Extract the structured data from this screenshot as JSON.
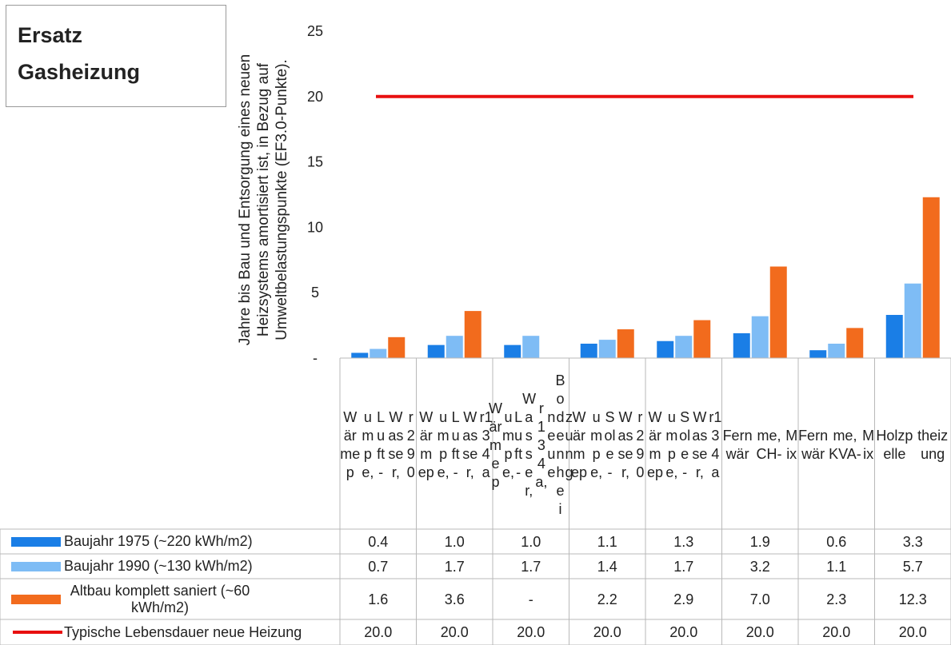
{
  "title": {
    "line1": "Ersatz",
    "line2": "Gasheizung"
  },
  "chart_data": {
    "type": "bar",
    "ylabel": "Jahre bis Bau und Entsorgung eines neuen Heizsystems amortisiert ist, in Bezug auf Umweltbelastungspunkte (EF3.0-Punkte).",
    "ylim": [
      0,
      25
    ],
    "yticks": [
      "-",
      "5",
      "10",
      "15",
      "20",
      "25"
    ],
    "categories": [
      "Wärmepumpe, Luft-Wasser, r290",
      "Wärmepumpe, Luft-Wasser, r134a",
      "Wärmepumpe, Luft-Wasser, r134a, neue Bodenheizung",
      "Wärmepumpe, Sole-Wasser, r290",
      "Wärmepumpe, Sole-Wasser, r134a",
      "Fernwärme, CH-Mix",
      "Fernwärme, KVA-Mix",
      "Holzpelletheizung"
    ],
    "category_labels": [
      [
        "Wärmep",
        "umpe,",
        "Luft-",
        "Wasser,",
        "r290"
      ],
      [
        "Wärmep",
        "umpe,",
        "Luft-",
        "Wasser,",
        "r134a"
      ],
      [
        "Wärmep",
        "umpe,",
        "Luft-",
        "Wasser,",
        "r134a,",
        "neue",
        "Bodenhei",
        "zung"
      ],
      [
        "Wärmep",
        "umpe,",
        "Sole-",
        "Wasser,",
        "r290"
      ],
      [
        "Wärmep",
        "umpe,",
        "Sole-",
        "Wasser,",
        "r134a"
      ],
      [
        "Fernwär",
        "me, CH-",
        "Mix"
      ],
      [
        "Fernwär",
        "me, KVA-",
        "Mix"
      ],
      [
        "Holzpelle",
        "theizung"
      ]
    ],
    "series": [
      {
        "name": "Baujahr 1975 (~220 kWh/m2)",
        "color": "#1a7ee6",
        "values": [
          0.4,
          1.0,
          1.0,
          1.1,
          1.3,
          1.9,
          0.6,
          3.3
        ],
        "display": [
          "0.4",
          "1.0",
          "1.0",
          "1.1",
          "1.3",
          "1.9",
          "0.6",
          "3.3"
        ]
      },
      {
        "name": "Baujahr 1990 (~130 kWh/m2)",
        "color": "#7ebcf5",
        "values": [
          0.7,
          1.7,
          1.7,
          1.4,
          1.7,
          3.2,
          1.1,
          5.7
        ],
        "display": [
          "0.7",
          "1.7",
          "1.7",
          "1.4",
          "1.7",
          "3.2",
          "1.1",
          "5.7"
        ]
      },
      {
        "name": "Altbau komplett saniert (~60 kWh/m2)",
        "color": "#f26b1d",
        "values": [
          1.6,
          3.6,
          null,
          2.2,
          2.9,
          7.0,
          2.3,
          12.3
        ],
        "display": [
          "1.6",
          "3.6",
          "-",
          "2.2",
          "2.9",
          "7.0",
          "2.3",
          "12.3"
        ]
      }
    ],
    "line_series": {
      "name": "Typische Lebensdauer neue Heizung",
      "color": "#e81010",
      "values": [
        20.0,
        20.0,
        20.0,
        20.0,
        20.0,
        20.0,
        20.0,
        20.0
      ],
      "display": [
        "20.0",
        "20.0",
        "20.0",
        "20.0",
        "20.0",
        "20.0",
        "20.0",
        "20.0"
      ]
    },
    "legend_placement": "data-table",
    "grid": false
  }
}
